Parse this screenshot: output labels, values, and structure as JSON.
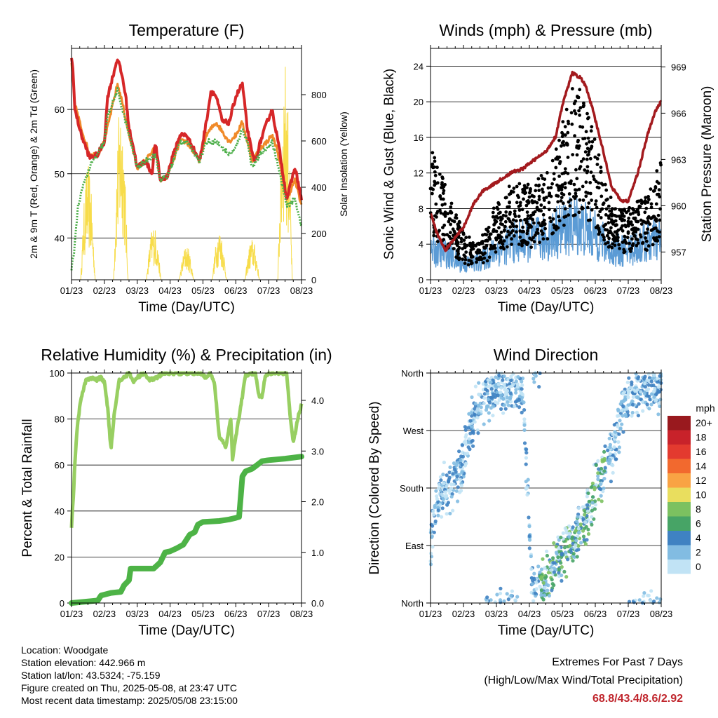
{
  "chart_data": [
    {
      "type": "line",
      "title": "Temperature (F)",
      "xlabel": "Time (Day/UTC)",
      "ylabel": "2m & 9m T (Red, Orange) & 2m Td (Green)",
      "y2label": "Solar Insolation (Yellow)",
      "x_ticks": [
        "01/23",
        "02/23",
        "03/23",
        "04/23",
        "05/23",
        "06/23",
        "07/23",
        "08/23"
      ],
      "ylim": [
        33.5,
        69.5
      ],
      "y_ticks": [
        40,
        50,
        60
      ],
      "y2lim": [
        0,
        1000
      ],
      "y2_ticks": [
        0,
        200,
        400,
        600,
        800
      ],
      "grid": true,
      "series": [
        {
          "color": "#d62728",
          "x": [
            0,
            0.05,
            0.1,
            0.3,
            0.55,
            0.8,
            1,
            1.1,
            1.4,
            1.55,
            1.65,
            1.75,
            1.85,
            2,
            2.25,
            2.45,
            2.55,
            2.7,
            2.9,
            3.1,
            3.3,
            3.5,
            3.7,
            3.9,
            4.1,
            4.25,
            4.4,
            4.6,
            4.8,
            5,
            5.2,
            5.35,
            5.5,
            5.6,
            5.75,
            5.95,
            6.1,
            6.25,
            6.35,
            6.55,
            6.8,
            7
          ],
          "y": [
            68,
            66,
            60,
            56,
            52.5,
            53,
            55,
            62,
            68,
            65,
            62,
            57,
            55,
            51,
            52,
            50,
            55,
            49,
            49.5,
            53,
            56,
            56,
            54,
            52,
            58,
            63,
            62,
            58,
            58,
            62,
            64,
            57,
            53,
            52,
            55,
            58,
            60,
            56,
            53,
            46,
            51,
            46
          ]
        },
        {
          "color": "#f08a29",
          "x": [
            0,
            0.1,
            0.3,
            0.55,
            0.8,
            1,
            1.4,
            1.55,
            1.75,
            1.85,
            2,
            2.25,
            2.55,
            2.7,
            2.9,
            3.1,
            3.3,
            3.5,
            3.9,
            4.1,
            4.4,
            4.8,
            5,
            5.2,
            5.35,
            5.5,
            5.75,
            5.95,
            6.1,
            6.25,
            6.55,
            6.8,
            7
          ],
          "y": [
            67,
            61,
            57,
            53,
            53,
            55,
            64,
            61,
            56,
            54,
            51,
            52,
            54,
            49,
            49.5,
            52,
            55,
            55,
            52,
            56,
            58,
            55,
            56,
            58,
            55,
            52,
            54,
            55,
            56,
            54,
            46,
            49,
            45
          ]
        },
        {
          "color": "#4daf4a",
          "x": [
            0,
            0.08,
            0.2,
            0.4,
            0.6,
            0.8,
            1,
            1.1,
            1.4,
            1.6,
            1.75,
            1.85,
            2,
            2.25,
            2.55,
            2.7,
            2.9,
            3.1,
            3.3,
            3.5,
            3.9,
            4.1,
            4.4,
            4.8,
            5,
            5.2,
            5.35,
            5.5,
            5.75,
            5.95,
            6.1,
            6.25,
            6.55,
            6.8,
            7
          ],
          "y": [
            35,
            38,
            45,
            49,
            51.5,
            53,
            55,
            59,
            63,
            59,
            56,
            54,
            51,
            52,
            53,
            49,
            49.5,
            52,
            55,
            55,
            52,
            55,
            55,
            53,
            54,
            57,
            55,
            51,
            53,
            54,
            55,
            52,
            45,
            46,
            42
          ]
        }
      ],
      "solar": {
        "color": "#f7dc4a",
        "days": [
          0.5,
          1.5,
          2.5,
          3.5,
          4.5,
          5.5,
          6.5
        ],
        "peaks": [
          500,
          780,
          240,
          150,
          220,
          180,
          950
        ]
      }
    },
    {
      "type": "scatter",
      "title": "Winds (mph) & Pressure (mb)",
      "xlabel": "Time (Day/UTC)",
      "ylabel": "Sonic Wind & Gust (Blue, Black)",
      "y2label": "Station Pressure (Maroon)",
      "x_ticks": [
        "01/23",
        "02/23",
        "03/23",
        "04/23",
        "05/23",
        "06/23",
        "07/23",
        "08/23"
      ],
      "ylim": [
        0,
        26
      ],
      "y_ticks": [
        0,
        4,
        8,
        12,
        16,
        20,
        24
      ],
      "y2lim": [
        955.2,
        970.2
      ],
      "y2_ticks": [
        957,
        960,
        963,
        966,
        969
      ],
      "grid": true,
      "wind_mean_env": {
        "x": [
          0,
          0.5,
          1,
          1.5,
          2,
          2.5,
          3,
          3.5,
          4,
          4.5,
          5,
          5.5,
          6,
          6.5,
          7
        ],
        "y": [
          4,
          3.5,
          2,
          2.5,
          4,
          5,
          5.5,
          5.5,
          7,
          7.5,
          6,
          4,
          4,
          5,
          5.5
        ]
      },
      "gust_env": {
        "x": [
          0,
          0.3,
          0.7,
          1,
          1.4,
          1.8,
          2,
          2.5,
          3,
          3.5,
          4,
          4.3,
          4.6,
          5,
          5.3,
          5.6,
          6,
          6.5,
          7
        ],
        "y": [
          11,
          9,
          6,
          4,
          3,
          5,
          7,
          8,
          8,
          9,
          13,
          16,
          16,
          12,
          8,
          6,
          6,
          7,
          10
        ]
      },
      "pressure": {
        "color": "#a31a1e",
        "x": [
          0,
          0.2,
          0.45,
          0.7,
          1,
          1.3,
          1.6,
          1.85,
          2.2,
          2.5,
          2.8,
          3.1,
          3.5,
          3.8,
          4,
          4.3,
          4.55,
          4.7,
          4.9,
          5.2,
          5.5,
          5.8,
          6,
          6.3,
          6.6,
          6.8,
          7
        ],
        "y": [
          959.5,
          958.2,
          957.1,
          957.8,
          958.6,
          960.1,
          961,
          961.3,
          961.8,
          962.2,
          962.4,
          962.9,
          963.5,
          964.5,
          966.5,
          968.6,
          968.3,
          967.8,
          966.4,
          963.9,
          961.2,
          960.3,
          960.3,
          962.2,
          964.7,
          966,
          966.8
        ]
      }
    },
    {
      "type": "line",
      "title": "Relative Humidity (%) & Precipitation (in)",
      "xlabel": "Time (Day/UTC)",
      "ylabel": "Percent & Total Rainfall",
      "x_ticks": [
        "01/23",
        "02/23",
        "03/23",
        "04/23",
        "05/23",
        "06/23",
        "07/23",
        "08/23"
      ],
      "ylim": [
        0,
        100
      ],
      "y_ticks": [
        0,
        20,
        40,
        60,
        80,
        100
      ],
      "y2lim": [
        0,
        4.54
      ],
      "y2_ticks": [
        "0.0",
        "1.0",
        "2.0",
        "3.0",
        "4.0"
      ],
      "grid": true,
      "series": [
        {
          "name": "",
          "color": "#98cf62",
          "x": [
            0,
            0.05,
            0.1,
            0.15,
            0.2,
            0.3,
            0.45,
            0.6,
            0.75,
            0.9,
            1.0,
            1.1,
            1.2,
            1.3,
            1.45,
            1.6,
            1.75,
            1.9,
            2.0,
            2.2,
            2.4,
            2.6,
            2.8,
            3.0,
            3.3,
            3.6,
            3.9,
            4.1,
            4.2,
            4.35,
            4.5,
            4.7,
            4.85,
            4.9,
            5.0,
            5.3,
            5.6,
            5.7,
            5.8,
            5.9,
            6.0,
            6.3,
            6.55,
            6.65,
            6.75,
            6.9,
            7.0
          ],
          "y": [
            33,
            45,
            60,
            72,
            80,
            90,
            97,
            98,
            97,
            98,
            96,
            85,
            67,
            82,
            97,
            98,
            100,
            96,
            98,
            100,
            97,
            98,
            100,
            100,
            100,
            100,
            100,
            98,
            100,
            96,
            72,
            68,
            80,
            63,
            72,
            99,
            100,
            90,
            90,
            99,
            100,
            100,
            100,
            82,
            70,
            81,
            86
          ]
        },
        {
          "name": "",
          "color": "#4db346",
          "x": [
            0,
            0.8,
            0.9,
            1.2,
            1.5,
            1.6,
            1.75,
            1.8,
            2.0,
            2.5,
            2.7,
            2.85,
            3.0,
            3.2,
            3.4,
            3.6,
            3.75,
            3.85,
            4.0,
            4.5,
            4.8,
            5.0,
            5.1,
            5.2,
            5.3,
            5.5,
            5.6,
            5.8,
            6.0,
            6.5,
            7.0
          ],
          "y": [
            0,
            0.05,
            0.15,
            0.2,
            0.22,
            0.35,
            0.45,
            0.68,
            0.68,
            0.68,
            0.8,
            1.0,
            1.02,
            1.08,
            1.15,
            1.35,
            1.4,
            1.55,
            1.6,
            1.62,
            1.65,
            1.68,
            1.7,
            2.5,
            2.6,
            2.65,
            2.7,
            2.8,
            2.82,
            2.85,
            2.89
          ]
        }
      ]
    },
    {
      "type": "scatter",
      "title": "Wind Direction",
      "xlabel": "Time (Day/UTC)",
      "ylabel": "Direction (Colored By Speed)",
      "x_ticks": [
        "01/23",
        "02/23",
        "03/23",
        "04/23",
        "05/23",
        "06/23",
        "07/23",
        "08/23"
      ],
      "y_ticks": [
        "North",
        "East",
        "South",
        "West",
        "North"
      ],
      "ylim": [
        0,
        360
      ],
      "grid": true,
      "track": {
        "x": [
          0,
          0.3,
          0.6,
          0.9,
          1.1,
          1.3,
          1.6,
          2.0,
          2.4,
          2.8,
          3.1,
          3.3,
          3.6,
          3.9,
          4.2,
          4.5,
          4.8,
          5.0,
          5.2,
          5.4,
          5.6,
          5.8,
          6.0,
          6.3,
          6.6,
          6.9,
          7.0
        ],
        "y": [
          100,
          170,
          185,
          205,
          250,
          290,
          320,
          335,
          340,
          330,
          10,
          20,
          40,
          70,
          90,
          110,
          140,
          180,
          200,
          230,
          250,
          290,
          320,
          330,
          340,
          330,
          345
        ]
      },
      "legend": {
        "title": "mph",
        "labels": [
          "20+",
          "18",
          "16",
          "14",
          "12",
          "10",
          "8",
          "6",
          "4",
          "2",
          "0"
        ],
        "colors": [
          "#99191e",
          "#c8222a",
          "#e33a2f",
          "#f2692e",
          "#f9a344",
          "#e9de5e",
          "#7cc160",
          "#47a466",
          "#3f82c2",
          "#82bce2",
          "#c1e3f5"
        ]
      }
    }
  ],
  "info": {
    "location": "Location: Woodgate",
    "elevation": "Station elevation: 442.966 m",
    "latlon": "Station lat/lon: 43.5324; -75.159",
    "created": "Figure created on Thu, 2025-05-08, at 23:47 UTC",
    "recent": "Most recent data timestamp: 2025/05/08 23:15:00"
  },
  "extremes": {
    "line1": "Extremes For Past 7 Days",
    "line2": "(High/Low/Max Wind/Total Precipitation)",
    "values": "68.8/43.4/8.6/2.92"
  }
}
